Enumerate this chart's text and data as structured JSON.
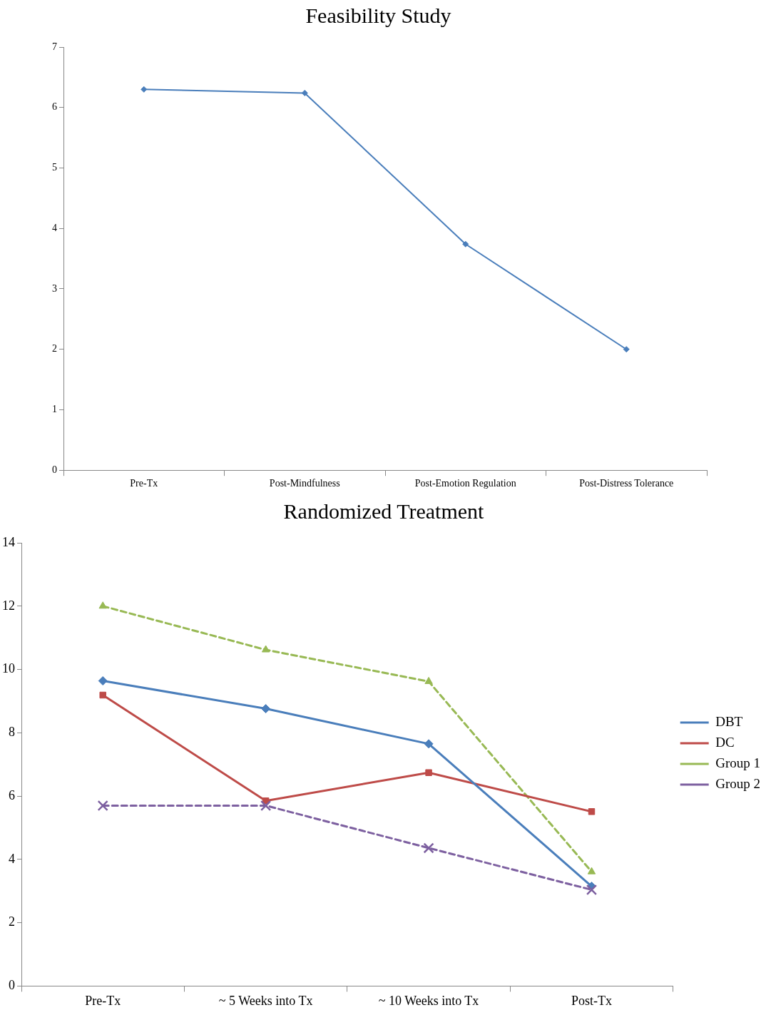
{
  "chart_data": [
    {
      "type": "line",
      "title": "Feasibility Study",
      "categories": [
        "Pre-Tx",
        "Post-Mindfulness",
        "Post-Emotion Regulation",
        "Post-Distress Tolerance"
      ],
      "series": [
        {
          "color": "#4a7ebb",
          "values": [
            6.3,
            6.24,
            3.74,
            2.0
          ]
        }
      ],
      "ylim": [
        0,
        7
      ],
      "yticks": [
        0,
        1,
        2,
        3,
        4,
        5,
        6,
        7
      ],
      "grid": false,
      "legend": false,
      "marker": "diamond",
      "line_style": "solid"
    },
    {
      "type": "line",
      "title": "Randomized Treatment",
      "categories": [
        "Pre-Tx",
        "~ 5 Weeks into Tx",
        "~ 10 Weeks into Tx",
        "Post-Tx"
      ],
      "series": [
        {
          "name": "DBT",
          "color": "#4a7ebb",
          "values": [
            9.64,
            8.76,
            7.65,
            3.15
          ],
          "marker": "diamond",
          "line_style": "solid"
        },
        {
          "name": "DC",
          "color": "#be4b48",
          "values": [
            9.19,
            5.85,
            6.74,
            5.51
          ],
          "marker": "square",
          "line_style": "solid"
        },
        {
          "name": "Group 1",
          "color": "#98b954",
          "values": [
            12.0,
            10.62,
            9.62,
            3.61
          ],
          "marker": "triangle",
          "line_style": "dashed"
        },
        {
          "name": "Group 2",
          "color": "#7d60a0",
          "values": [
            5.7,
            5.7,
            4.36,
            3.04
          ],
          "marker": "cross",
          "line_style": "dashed"
        }
      ],
      "ylim": [
        0,
        14
      ],
      "yticks": [
        0,
        2,
        4,
        6,
        8,
        10,
        12,
        14
      ],
      "grid": false,
      "legend": "right"
    }
  ]
}
